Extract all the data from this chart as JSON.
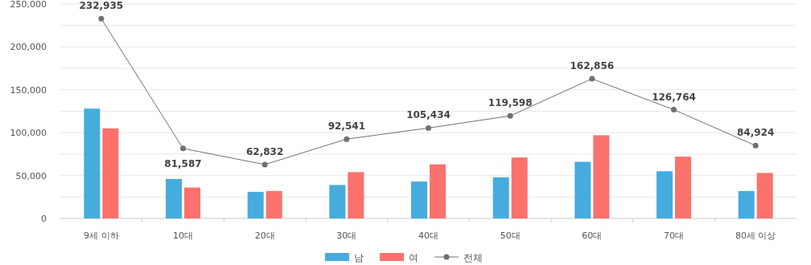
{
  "chart_data": {
    "type": "bar",
    "categories": [
      "9세 이하",
      "10대",
      "20대",
      "30대",
      "40대",
      "50대",
      "60대",
      "70대",
      "80세 이상"
    ],
    "series": [
      {
        "name": "남",
        "color": "#45acdd",
        "values": [
          128000,
          46000,
          31000,
          39000,
          43000,
          48000,
          66000,
          55000,
          32000
        ]
      },
      {
        "name": "여",
        "color": "#fb716c",
        "values": [
          105000,
          36000,
          32000,
          54000,
          63000,
          71000,
          97000,
          72000,
          53000
        ]
      },
      {
        "name": "전체",
        "type": "line",
        "color": "#707070",
        "marker": "circle",
        "values": [
          232935,
          81587,
          62832,
          92541,
          105434,
          119598,
          162856,
          126764,
          84924
        ],
        "value_labels": [
          "232,935",
          "81,587",
          "62,832",
          "92,541",
          "105,434",
          "119,598",
          "162,856",
          "126,764",
          "84,924"
        ]
      }
    ],
    "ylim": [
      0,
      250000
    ],
    "yticks": [
      0,
      {
        "value": 25000,
        "label": null
      },
      {
        "value": 50000,
        "label": "50,000"
      },
      {
        "value": 75000,
        "label": null
      },
      {
        "value": 100000,
        "label": "100,000"
      },
      {
        "value": 125000,
        "label": null
      },
      {
        "value": 150000,
        "label": "150,000"
      },
      {
        "value": 175000,
        "label": null
      },
      {
        "value": 200000,
        "label": "200,000"
      },
      {
        "value": 225000,
        "label": null
      },
      {
        "value": 250000,
        "label": "250,000"
      }
    ],
    "grid": "y",
    "legend": "bottom"
  }
}
